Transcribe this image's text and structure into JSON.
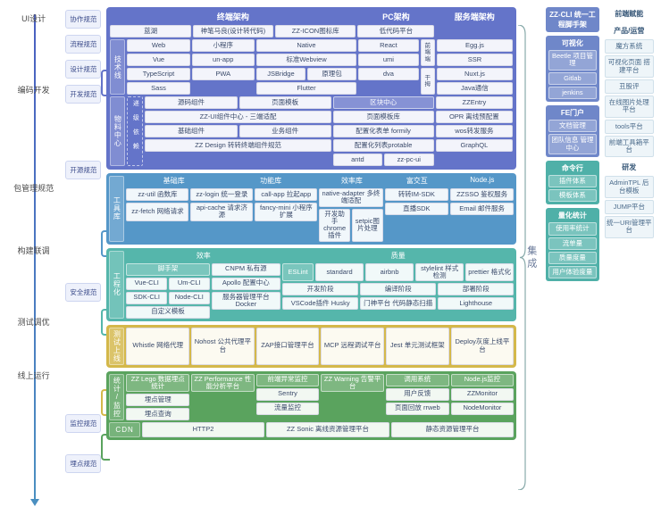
{
  "colors": {
    "purple": "#6474c9",
    "blue": "#5597c8",
    "teal": "#55b6ab",
    "green": "#6ab674",
    "yellow": "#d4b84a",
    "greenDark": "#5aa35e",
    "rightTop": "#6f87c9",
    "teal2": "#4fb0a8",
    "chipBg": "#eef1fb"
  },
  "left": {
    "stages": [
      "UI设计",
      "编码开发",
      "包管理规范",
      "构建联调",
      "测试调优",
      "线上运行"
    ]
  },
  "subcol": [
    "协作规范",
    "流程规范",
    "设计规范",
    "开发规范",
    "开源规范",
    "安全规范",
    "监控规范",
    "埋点规范"
  ],
  "p1": {
    "cols": [
      {
        "title": "终端架构",
        "rows": [
          [
            "蓝湖",
            "神笔马良(设计转代码)",
            "ZZ-ICON图标库"
          ]
        ]
      },
      {
        "title": "PC架构",
        "rows": [
          [
            "低代码平台"
          ]
        ]
      },
      {
        "title": "服务端架构",
        "rows": []
      }
    ],
    "techLabel": "技术线",
    "tech": {
      "g1": {
        "title": "Web",
        "items": [
          "Vue",
          "TypeScript",
          "Sass"
        ]
      },
      "g2": {
        "title": "小程序",
        "items": [
          "un-app",
          "PWA"
        ]
      },
      "g3": {
        "title": "Native",
        "items": [
          [
            "标准Webview"
          ],
          [
            "JSBridge",
            "原理包"
          ],
          [
            "Flutter"
          ]
        ]
      },
      "pc": [
        "React",
        "umi",
        "dva"
      ],
      "pcSide": [
        "前 端 端",
        "干 拇"
      ],
      "srv": [
        "Egg.js",
        "SSR",
        "Nuxt.js",
        "Java通信"
      ]
    },
    "matLabel": "物料中心",
    "depLabel": "递 级 依 赖",
    "mat": {
      "left": [
        [
          "源码组件",
          "页面模板"
        ],
        [
          "ZZ-UI组件中心 - 三端适配"
        ],
        [
          "基础组件",
          "业务组件"
        ],
        [
          "ZZ Design 转转终端组件规范"
        ]
      ],
      "mid": {
        "title": "区块中心",
        "items": [
          "页面模板库",
          "配置化表单 formily",
          "配置化列表protable",
          [
            "antd",
            "zz-pc-ui"
          ]
        ]
      },
      "right": [
        "ZZEntry",
        "OPR 离线预配置",
        "wos转发服务",
        "GraphQL"
      ]
    }
  },
  "p2": {
    "label": "工具库",
    "cols": [
      {
        "title": "基础库",
        "items": [
          [
            "zz-util 函数库",
            "zz-login 统一登录",
            "call-app 拉起app"
          ],
          [
            "zz-fetch 网络请求",
            "api-cache 请求济源",
            "fancy-mini 小程序扩展"
          ]
        ]
      },
      {
        "title": "功能库",
        "span": 0
      },
      {
        "title": "效率库",
        "items": [
          [
            "native-adapter 多终端适配"
          ],
          [
            "开发助手chrome插件",
            "setpic图片处理"
          ]
        ]
      },
      {
        "title": "富交互",
        "items": [
          [
            "转转IM-SDK"
          ],
          [
            "直播SDK"
          ]
        ]
      },
      {
        "title": "Node.js",
        "items": [
          [
            "ZZSSO 鉴权服务"
          ],
          [
            "Email 邮件服务"
          ]
        ]
      }
    ]
  },
  "p3": {
    "label": "工程化",
    "left": {
      "title": "效率",
      "rows": [
        {
          "h": "脚手架",
          "sub": [
            [
              "Vue-CLI",
              "Um-CLI"
            ],
            [
              "SDK-CLI",
              "Node-CLI"
            ],
            [
              "自定义模板"
            ]
          ]
        },
        {
          "items": [
            "CNPM 私有源",
            "Apollo 配置中心",
            "服务器管理平台 Docker"
          ]
        }
      ]
    },
    "right": {
      "title": "质量",
      "rows": [
        {
          "h": "ESLint",
          "sub": [
            [
              "standard",
              "airbnb",
              "stylelint 样式检测",
              "prettier 格式化"
            ]
          ]
        },
        {
          "items": [
            [
              "开发阶段",
              "编译阶段",
              "部署阶段"
            ],
            [
              "VSCode插件 Husky",
              "门神平台 代码静态扫描",
              "Lighthouse"
            ]
          ]
        }
      ]
    }
  },
  "p4": {
    "label": "测试上线",
    "items": [
      "Whistle 网络代理",
      "Nohost 公共代理平台",
      "ZAP接口管理平台",
      "MCP 远程调试平台",
      "Jest 单元测试框架",
      "Deploy灰度上线平台"
    ]
  },
  "p5": {
    "label": "统计/监控",
    "row1": [
      {
        "h": "ZZ Lego 数据埋点统计",
        "sub": [
          "埋点管理",
          "埋点查询"
        ]
      },
      {
        "h": "ZZ Performance 性能分析平台"
      },
      {
        "h": "前端异常监控",
        "sub": [
          "Sentry",
          "流量监控"
        ]
      },
      {
        "h": "ZZ Warning 告警平台"
      },
      {
        "h": "调用系统",
        "sub": [
          "用户反馈",
          "页面回放 rrweb"
        ]
      },
      {
        "h": "Node.js监控",
        "sub": [
          "ZZMonitor",
          "NodeMonitor"
        ]
      }
    ],
    "cdn": {
      "label": "CDN",
      "items": [
        "HTTP2",
        "ZZ Sonic 离线资源管理平台",
        "静态资源管理平台"
      ]
    }
  },
  "bridge": "集成",
  "right": {
    "title": "ZZ-CLI 统一工程脚手架",
    "groups": [
      {
        "title": "可视化",
        "items": [
          "Beetle 项目管理",
          "Gitlab",
          "jenkins"
        ]
      },
      {
        "title": "FE门户",
        "items": [
          "文档管理",
          "团队信息 管理中心"
        ]
      },
      {
        "title": "命令行",
        "items": [
          "插件体系",
          "模板体系"
        ]
      },
      {
        "title": "量化统计",
        "items": [
          "使用率统计",
          "流单量",
          "质量度量",
          "用户体验度量"
        ]
      }
    ]
  },
  "far": {
    "title": "前端赋能",
    "groups": [
      {
        "title": "产品/运营",
        "items": [
          "魔方系统",
          "可视化页面 搭建平台",
          "丑股评",
          "在线图片处理平台",
          "tools平台",
          "前端工具箱平台"
        ]
      },
      {
        "title": "研发",
        "items": [
          "AdminTPL 后台模板",
          "JUMP平台",
          "统一URI管理平台"
        ]
      }
    ]
  }
}
